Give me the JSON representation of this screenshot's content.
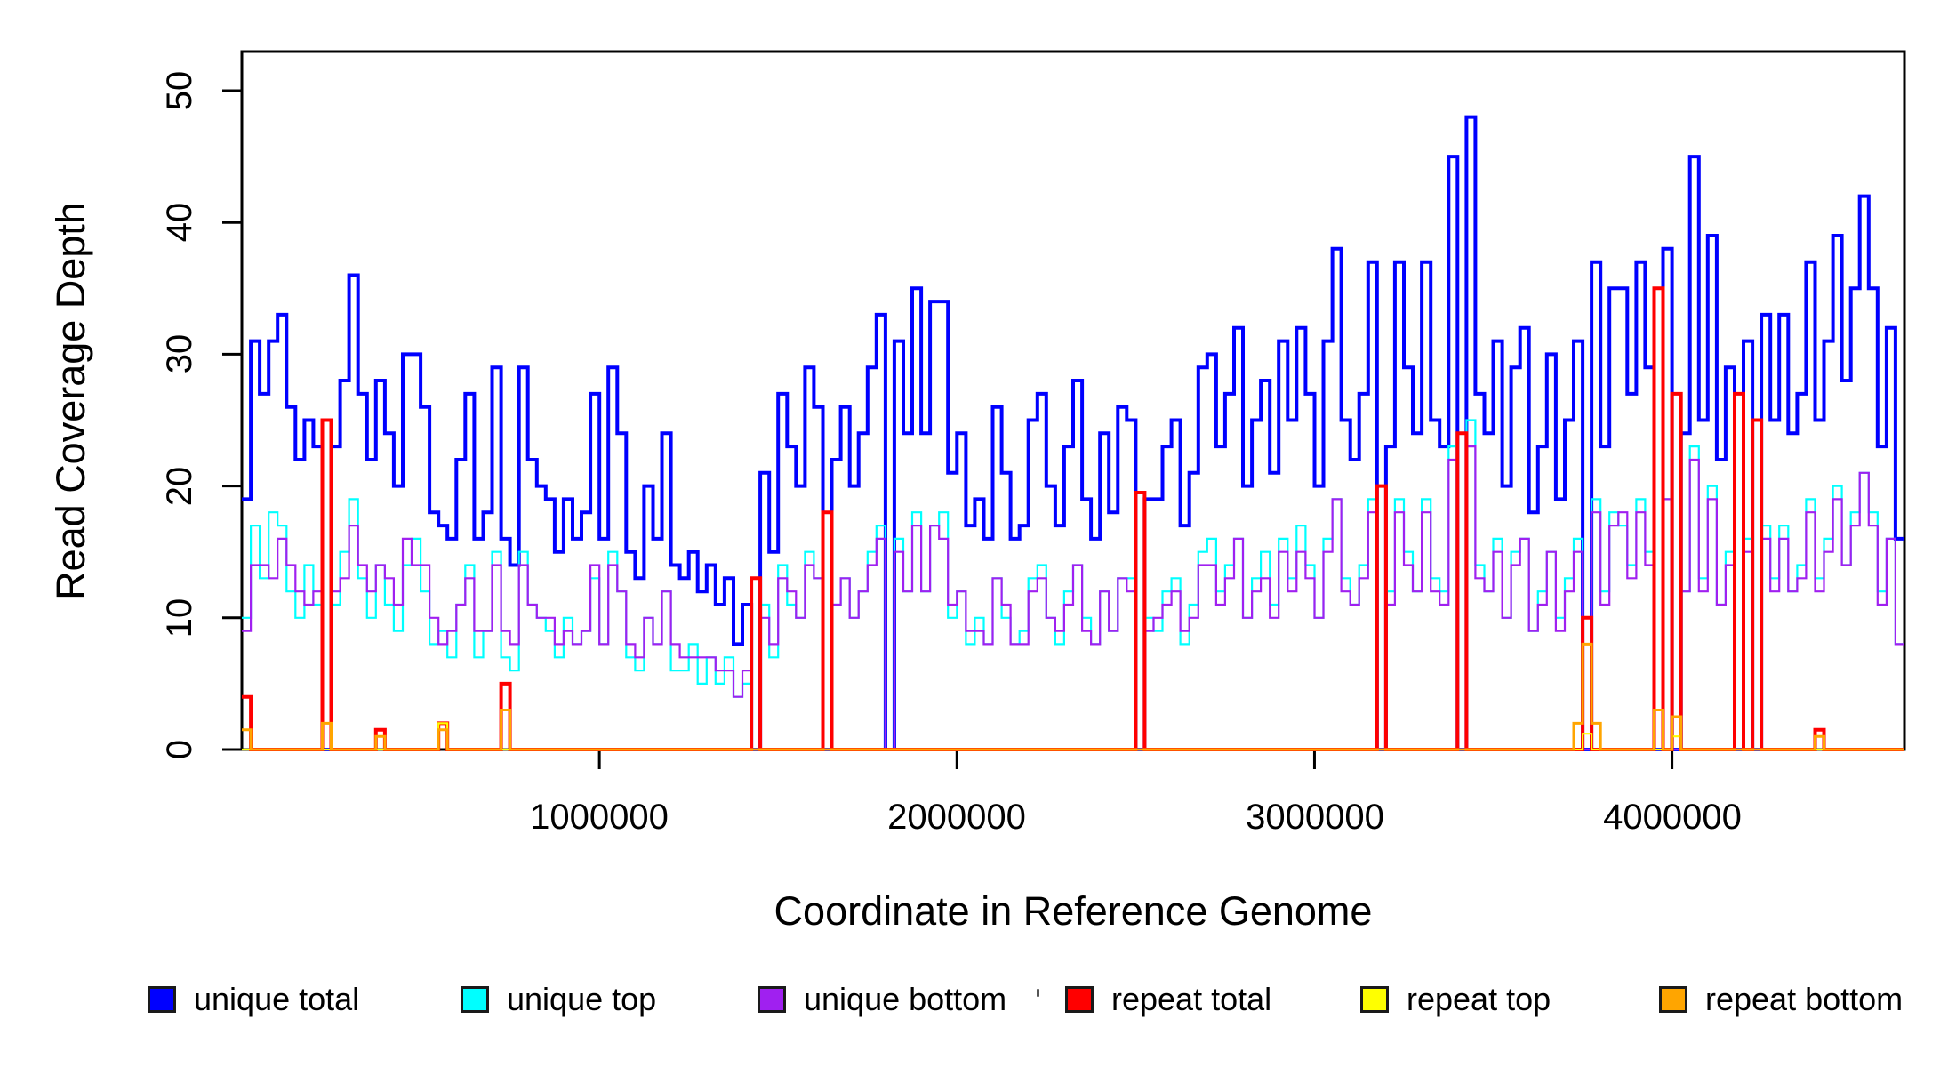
{
  "chart_data": {
    "type": "line",
    "style": "step",
    "title": "",
    "xlabel": "Coordinate in Reference Genome",
    "ylabel": "Read Coverage Depth",
    "xlim": [
      0,
      4650000
    ],
    "ylim": [
      0,
      50
    ],
    "grid": "off",
    "legend_position": "bottom",
    "x_ticks": [
      1000000,
      2000000,
      3000000,
      4000000
    ],
    "x_tick_labels": [
      "1000000",
      "2000000",
      "3000000",
      "4000000"
    ],
    "y_ticks": [
      0,
      10,
      20,
      30,
      40,
      50
    ],
    "y_tick_labels": [
      "0",
      "10",
      "20",
      "30",
      "40",
      "50"
    ],
    "window_size_bp": 25000,
    "n_windows": 186,
    "series": [
      {
        "name": "unique total",
        "color": "#0000FF",
        "line_width": 4,
        "values": [
          19,
          31,
          27,
          31,
          33,
          26,
          22,
          25,
          23,
          0,
          23,
          28,
          36,
          27,
          22,
          28,
          24,
          20,
          30,
          30,
          26,
          18,
          17,
          16,
          22,
          27,
          16,
          18,
          29,
          16,
          14,
          29,
          22,
          20,
          19,
          15,
          19,
          16,
          18,
          27,
          16,
          29,
          24,
          15,
          13,
          20,
          16,
          24,
          14,
          13,
          15,
          12,
          14,
          11,
          13,
          8,
          11,
          0,
          21,
          15,
          27,
          23,
          20,
          29,
          26,
          0,
          22,
          26,
          20,
          24,
          29,
          33,
          0,
          31,
          24,
          35,
          24,
          34,
          34,
          21,
          24,
          17,
          19,
          16,
          26,
          21,
          16,
          17,
          25,
          27,
          20,
          17,
          23,
          28,
          19,
          16,
          24,
          18,
          26,
          25,
          0,
          19,
          19,
          23,
          25,
          17,
          21,
          29,
          30,
          23,
          27,
          32,
          20,
          25,
          28,
          21,
          31,
          25,
          32,
          27,
          20,
          31,
          38,
          25,
          22,
          27,
          37,
          0,
          23,
          37,
          29,
          24,
          37,
          25,
          23,
          45,
          0,
          48,
          27,
          24,
          31,
          20,
          29,
          32,
          18,
          23,
          30,
          19,
          25,
          31,
          0,
          37,
          23,
          35,
          35,
          27,
          37,
          29,
          0,
          38,
          0,
          24,
          45,
          25,
          39,
          22,
          29,
          0,
          31,
          0,
          33,
          25,
          33,
          24,
          27,
          37,
          25,
          31,
          39,
          28,
          35,
          42,
          35,
          23,
          32,
          16
        ]
      },
      {
        "name": "unique top",
        "color": "#00FFFF",
        "line_width": 2.2,
        "values": [
          10,
          17,
          13,
          18,
          17,
          12,
          10,
          14,
          11,
          0,
          11,
          15,
          19,
          13,
          10,
          14,
          11,
          9,
          14,
          16,
          12,
          8,
          9,
          7,
          11,
          14,
          7,
          9,
          15,
          7,
          6,
          15,
          11,
          10,
          9,
          7,
          10,
          8,
          9,
          13,
          8,
          15,
          12,
          7,
          6,
          10,
          8,
          12,
          6,
          6,
          8,
          5,
          7,
          5,
          7,
          4,
          5,
          0,
          11,
          7,
          14,
          11,
          10,
          15,
          13,
          0,
          11,
          13,
          10,
          12,
          15,
          17,
          0,
          16,
          12,
          18,
          12,
          17,
          18,
          10,
          12,
          8,
          10,
          8,
          13,
          10,
          8,
          9,
          13,
          14,
          10,
          8,
          12,
          14,
          10,
          8,
          12,
          9,
          13,
          13,
          0,
          10,
          9,
          12,
          13,
          8,
          11,
          15,
          16,
          12,
          14,
          16,
          10,
          13,
          15,
          11,
          16,
          13,
          17,
          14,
          10,
          16,
          19,
          13,
          11,
          14,
          19,
          0,
          12,
          19,
          15,
          12,
          19,
          13,
          12,
          23,
          0,
          25,
          14,
          12,
          16,
          10,
          15,
          16,
          9,
          12,
          15,
          10,
          13,
          16,
          0,
          19,
          12,
          18,
          17,
          14,
          19,
          15,
          0,
          19,
          0,
          12,
          23,
          13,
          20,
          11,
          15,
          0,
          16,
          0,
          17,
          13,
          17,
          12,
          14,
          19,
          13,
          16,
          20,
          14,
          18,
          21,
          18,
          12,
          16,
          8
        ]
      },
      {
        "name": "unique bottom",
        "color": "#A020F0",
        "line_width": 2.2,
        "values": [
          9,
          14,
          14,
          13,
          16,
          14,
          12,
          11,
          12,
          0,
          12,
          13,
          17,
          14,
          12,
          14,
          13,
          11,
          16,
          14,
          14,
          10,
          8,
          9,
          11,
          13,
          9,
          9,
          14,
          9,
          8,
          14,
          11,
          10,
          10,
          8,
          9,
          8,
          9,
          14,
          8,
          14,
          12,
          8,
          7,
          10,
          8,
          12,
          8,
          7,
          7,
          7,
          7,
          6,
          6,
          4,
          6,
          0,
          10,
          8,
          13,
          12,
          10,
          14,
          13,
          0,
          11,
          13,
          10,
          12,
          14,
          16,
          0,
          15,
          12,
          17,
          12,
          17,
          16,
          11,
          12,
          9,
          9,
          8,
          13,
          11,
          8,
          8,
          12,
          13,
          10,
          9,
          11,
          14,
          9,
          8,
          12,
          9,
          13,
          12,
          0,
          9,
          10,
          11,
          12,
          9,
          10,
          14,
          14,
          11,
          13,
          16,
          10,
          12,
          13,
          10,
          15,
          12,
          15,
          13,
          10,
          15,
          19,
          12,
          11,
          13,
          18,
          0,
          11,
          18,
          14,
          12,
          18,
          12,
          11,
          22,
          0,
          23,
          13,
          12,
          15,
          10,
          14,
          16,
          9,
          11,
          15,
          9,
          12,
          15,
          0,
          18,
          11,
          17,
          18,
          13,
          18,
          14,
          0,
          19,
          0,
          12,
          22,
          12,
          19,
          11,
          14,
          0,
          15,
          0,
          16,
          12,
          16,
          12,
          13,
          18,
          12,
          15,
          19,
          14,
          17,
          21,
          17,
          11,
          16,
          8
        ]
      },
      {
        "name": "repeat total",
        "color": "#FF0000",
        "line_width": 4,
        "sparse": {
          "0": 4,
          "9": 25,
          "15": 1.5,
          "22": 2,
          "29": 5,
          "57": 13,
          "65": 18,
          "100": 19.5,
          "127": 20,
          "136": 24,
          "150": 10,
          "158": 35,
          "160": 27,
          "167": 27,
          "169": 25,
          "176": 1.5
        }
      },
      {
        "name": "repeat top",
        "color": "#FFFF00",
        "line_width": 2.2,
        "sparse": {
          "22": 2,
          "150": 1.2,
          "160": 1
        }
      },
      {
        "name": "repeat bottom",
        "color": "#FFA500",
        "line_width": 3,
        "sparse": {
          "0": 1.5,
          "9": 2,
          "15": 1,
          "22": 1.5,
          "29": 3,
          "149": 2,
          "150": 8,
          "151": 2,
          "158": 3,
          "160": 2.5,
          "176": 1
        }
      }
    ]
  }
}
